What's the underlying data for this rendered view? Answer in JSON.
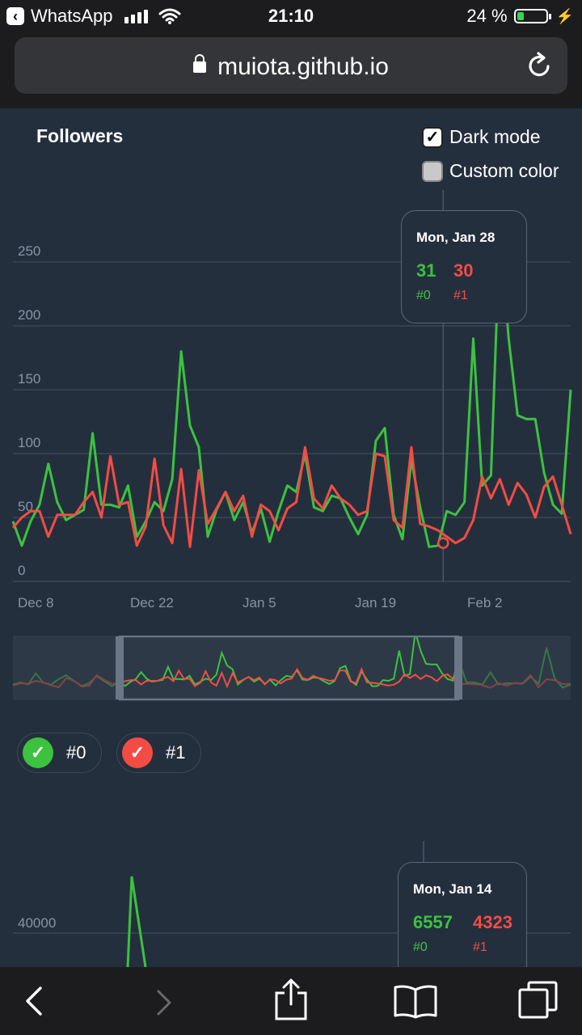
{
  "status": {
    "back_app": "WhatsApp",
    "time": "21:10",
    "battery": "24 %",
    "battery_level": 0.24
  },
  "browser": {
    "url": "muiota.github.io"
  },
  "chart1": {
    "title": "Followers",
    "options": {
      "dark_mode_label": "Dark mode",
      "dark_mode_checked": true,
      "custom_color_label": "Custom color",
      "custom_color_checked": false
    },
    "tooltip": {
      "date": "Mon, Jan 28",
      "values": [
        "31",
        "30"
      ],
      "names": [
        "#0",
        "#1"
      ]
    },
    "legend": [
      {
        "name": "#0",
        "color": "#3cc23f",
        "checked": true
      },
      {
        "name": "#1",
        "color": "#f34c44",
        "checked": true
      }
    ]
  },
  "chart2": {
    "tooltip": {
      "date": "Mon, Jan 14",
      "values": [
        "6557",
        "4323"
      ],
      "names": [
        "#0",
        "#1"
      ]
    }
  },
  "colors": {
    "series0": "#3cc23f",
    "series1": "#f34c44",
    "background": "#242f3e"
  },
  "chart_data": [
    {
      "type": "line",
      "title": "Followers",
      "yticks": [
        "0",
        "50",
        "100",
        "150",
        "200",
        "250"
      ],
      "xticks": [
        "Dec 8",
        "Dec 22",
        "Jan 5",
        "Jan 19",
        "Feb 2"
      ],
      "ylim": [
        0,
        250
      ],
      "grid": true,
      "legend_position": "bottom",
      "series": [
        {
          "name": "#0",
          "values": [
            47,
            28,
            47,
            60,
            92,
            62,
            48,
            52,
            56,
            116,
            60,
            60,
            58,
            75,
            35,
            47,
            62,
            55,
            80,
            180,
            122,
            105,
            35,
            56,
            70,
            48,
            62,
            38,
            57,
            31,
            55,
            75,
            70,
            100,
            58,
            55,
            67,
            65,
            50,
            37,
            52,
            110,
            120,
            52,
            33,
            95,
            58,
            27,
            28,
            55,
            52,
            62,
            190,
            75,
            83,
            275,
            190,
            130,
            127,
            127,
            85,
            60,
            53,
            150
          ]
        },
        {
          "name": "#1",
          "values": [
            42,
            50,
            55,
            55,
            35,
            52,
            52,
            52,
            62,
            70,
            50,
            98,
            60,
            62,
            28,
            43,
            96,
            44,
            30,
            88,
            27,
            87,
            45,
            57,
            70,
            55,
            67,
            35,
            60,
            55,
            40,
            57,
            62,
            105,
            65,
            57,
            75,
            65,
            60,
            52,
            55,
            100,
            98,
            48,
            42,
            105,
            45,
            43,
            40,
            35,
            30,
            34,
            48,
            82,
            65,
            80,
            60,
            77,
            68,
            50,
            74,
            82,
            60,
            37
          ]
        }
      ]
    },
    {
      "type": "line",
      "yticks": [
        "40000"
      ],
      "grid": true,
      "series": [
        {
          "name": "#0",
          "values": []
        },
        {
          "name": "#1",
          "values": []
        }
      ]
    }
  ]
}
